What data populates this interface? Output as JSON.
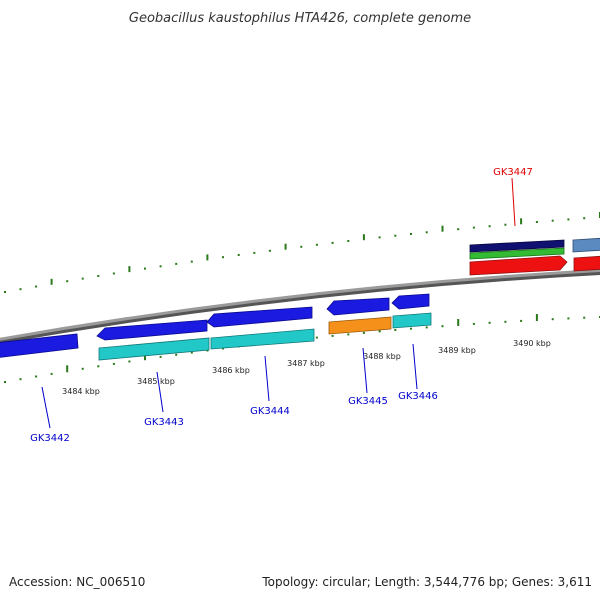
{
  "title": "Geobacillus kaustophilus HTA426, complete genome",
  "footer": {
    "accession": "Accession: NC_006510",
    "topology": "Topology: circular; Length: 3,544,776 bp; Genes: 3,611"
  },
  "ticks": [
    "3484 kbp",
    "3485 kbp",
    "3486 kbp",
    "3487 kbp",
    "3488 kbp",
    "3489 kbp",
    "3490 kbp"
  ],
  "gene_labels": [
    {
      "text": "GK3442",
      "color": "#0000cc"
    },
    {
      "text": "GK3443",
      "color": "#0000cc"
    },
    {
      "text": "GK3444",
      "color": "#0000cc"
    },
    {
      "text": "GK3445",
      "color": "#0000cc"
    },
    {
      "text": "GK3446",
      "color": "#0000cc"
    },
    {
      "text": "GK3447",
      "color": "#dd0000"
    }
  ],
  "colors": {
    "backbone": "#8a8a8a",
    "tick_green": "#2a7a1a",
    "cds_blue": "#1a1ae0",
    "cyan": "#22c8c8",
    "orange": "#f5901a",
    "navy": "#101070",
    "green": "#33bb33",
    "red": "#ee1111",
    "steel": "#5a8ac0"
  }
}
